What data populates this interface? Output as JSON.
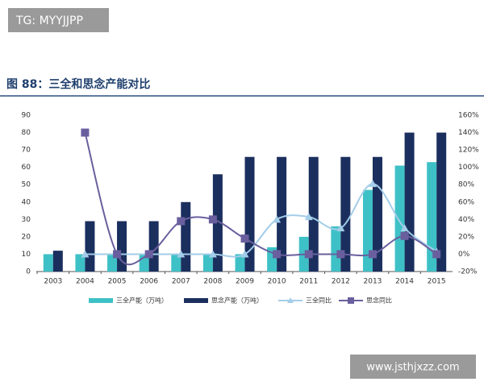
{
  "watermarks": [
    "TG: MYYJJPP",
    "www.jsthjxzz.com"
  ],
  "chart_data": {
    "type": "bar",
    "title": "图 88：三全和思念产能对比",
    "categories": [
      "2003",
      "2004",
      "2005",
      "2006",
      "2007",
      "2008",
      "2009",
      "2010",
      "2011",
      "2012",
      "2013",
      "2014",
      "2015"
    ],
    "series": [
      {
        "name": "三全产能（万吨）",
        "color": "#3ec1c6",
        "type": "bar",
        "values": [
          10,
          10,
          10,
          10,
          10,
          10,
          10,
          14,
          20,
          26,
          47,
          61,
          63
        ]
      },
      {
        "name": "思念产能（万吨）",
        "color": "#1b2f5e",
        "type": "bar",
        "values": [
          12,
          29,
          29,
          29,
          40,
          56,
          66,
          66,
          66,
          66,
          66,
          80,
          80
        ]
      },
      {
        "name": "三全同比",
        "color": "#a3cde8",
        "type": "line",
        "marker": "triangle",
        "axis": "y2",
        "values": [
          null,
          0,
          0,
          0,
          0,
          0,
          0,
          40,
          43,
          30,
          81,
          30,
          3
        ]
      },
      {
        "name": "思念同比",
        "color": "#6a5f9e",
        "type": "line",
        "marker": "square",
        "axis": "y2",
        "values": [
          null,
          140,
          0,
          0,
          38,
          40,
          18,
          0,
          0,
          0,
          0,
          21,
          0
        ]
      }
    ],
    "ylim": [
      0,
      90
    ],
    "yticks": [
      0,
      10,
      20,
      30,
      40,
      50,
      60,
      70,
      80,
      90
    ],
    "y2lim": [
      -20,
      160
    ],
    "y2ticks": [
      {
        "value": -20,
        "label": "-20%"
      },
      {
        "value": 0,
        "label": "0%"
      },
      {
        "value": 20,
        "label": "20%"
      },
      {
        "value": 40,
        "label": "40%"
      },
      {
        "value": 60,
        "label": "60%"
      },
      {
        "value": 80,
        "label": "80%"
      },
      {
        "value": 100,
        "label": "100%"
      },
      {
        "value": 120,
        "label": "120%"
      },
      {
        "value": 140,
        "label": "140%"
      },
      {
        "value": 160,
        "label": "160%"
      }
    ],
    "grid": false,
    "legend": "bottom"
  }
}
